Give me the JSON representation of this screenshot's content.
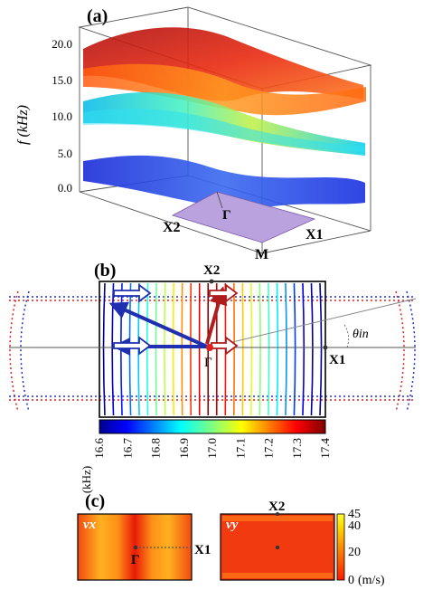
{
  "panel_a": {
    "label": "(a)",
    "y_axis_label": "f (kHz)",
    "y_ticks": [
      "20.0",
      "15.0",
      "10.0",
      "5.0",
      "0.0"
    ],
    "points": {
      "x2": "X2",
      "gamma": "Γ",
      "m": "M",
      "x1": "X1"
    }
  },
  "panel_b": {
    "label": "(b)",
    "points": {
      "x2": "X2",
      "gamma": "Γ",
      "x1": "X1"
    },
    "angle_label": "θin",
    "colorbar": {
      "unit": "(kHz)",
      "ticks": [
        "16.6",
        "16.7",
        "16.8",
        "16.9",
        "17.0",
        "17.1",
        "17.2",
        "17.3",
        "17.4"
      ],
      "range": [
        16.6,
        17.4
      ]
    }
  },
  "panel_c": {
    "label": "(c)",
    "left_map": {
      "title": "vx",
      "gamma": "Γ",
      "x1": "X1"
    },
    "right_map": {
      "title": "vy",
      "x2": "X2"
    },
    "colorbar": {
      "ticks": [
        "45",
        "40",
        "20",
        "0"
      ],
      "unit": "(m/s)",
      "range": [
        0,
        45
      ]
    }
  },
  "colors": {
    "arrow_blue": "#1f2fb0",
    "arrow_red": "#b01b1b",
    "bz_face": "#b9a2dd",
    "dot_red": "#e02020",
    "dot_blue": "#2030d0"
  }
}
